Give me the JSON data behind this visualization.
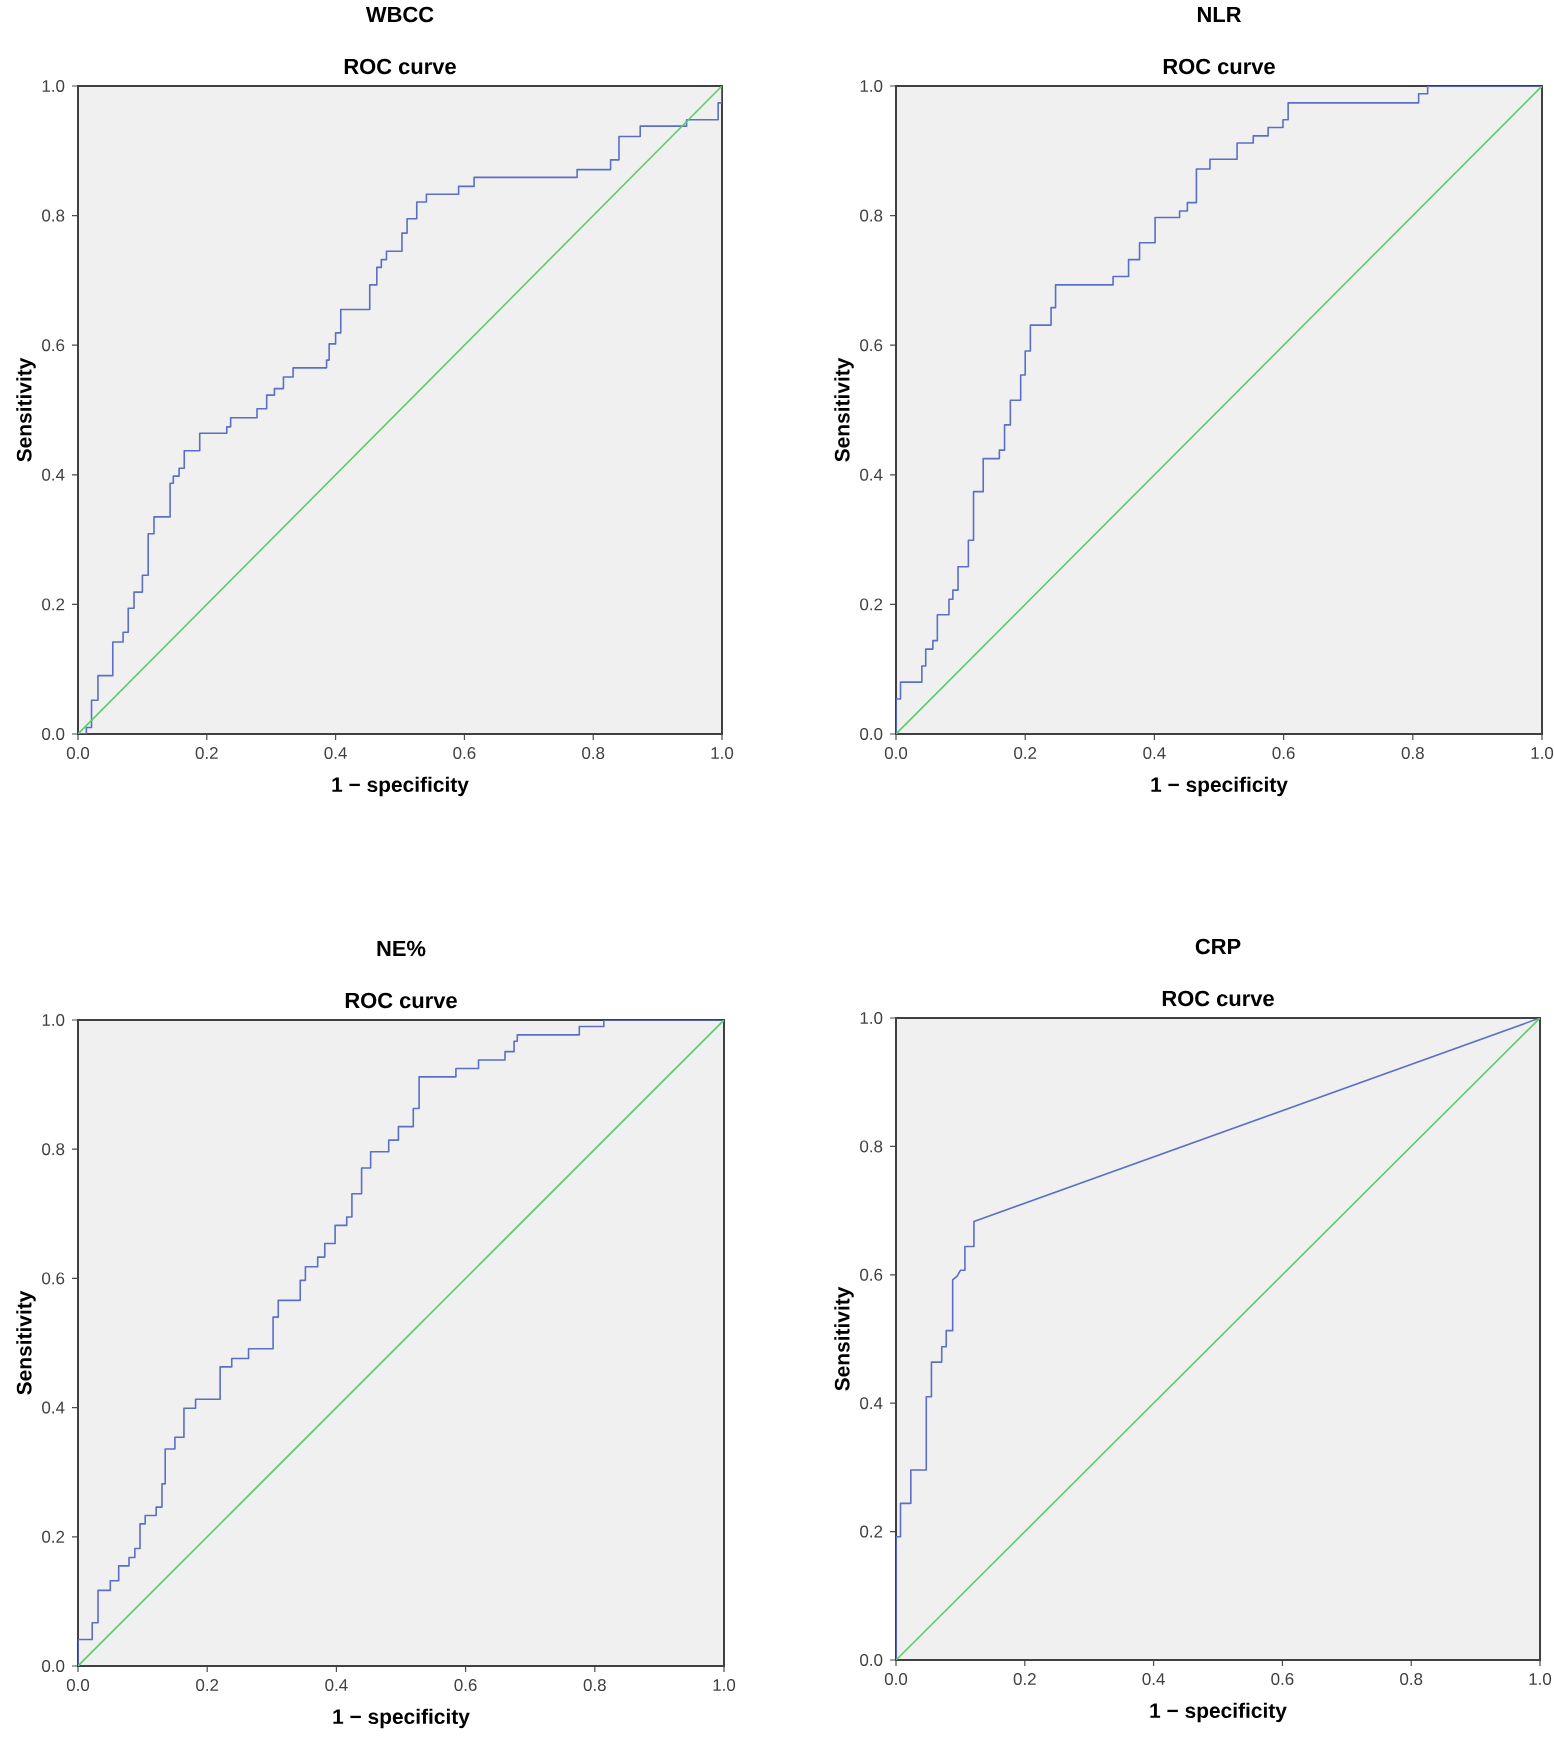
{
  "chart_data": [
    {
      "type": "step",
      "title": "WBCC",
      "subtitle": "ROC curve",
      "xlabel": "1 − specificity",
      "ylabel": "Sensitivity",
      "xlim": [
        0,
        1
      ],
      "ylim": [
        0,
        1
      ],
      "xticks": [
        {
          "value": 0,
          "label": "0.0"
        },
        {
          "value": 0.2,
          "label": "0.2"
        },
        {
          "value": 0.4,
          "label": "0.4"
        },
        {
          "value": 0.6,
          "label": "0.6"
        },
        {
          "value": 0.8,
          "label": "0.8"
        },
        {
          "value": 1,
          "label": "1.0"
        }
      ],
      "yticks": [
        {
          "value": 0,
          "label": "0.0"
        },
        {
          "value": 0.2,
          "label": "0.2"
        },
        {
          "value": 0.4,
          "label": "0.4"
        },
        {
          "value": 0.6,
          "label": "0.6"
        },
        {
          "value": 0.8,
          "label": "0.8"
        },
        {
          "value": 1,
          "label": "1.0"
        }
      ],
      "series": [
        {
          "color": "#5b6fc6",
          "x": [
            0,
            0.013,
            0.021,
            0.031,
            0.054,
            0.07,
            0.078,
            0.087,
            0.1,
            0.109,
            0.118,
            0.143,
            0.148,
            0.157,
            0.165,
            0.189,
            0.231,
            0.237,
            0.278,
            0.293,
            0.305,
            0.319,
            0.334,
            0.386,
            0.39,
            0.4,
            0.408,
            0.453,
            0.464,
            0.471,
            0.479,
            0.503,
            0.511,
            0.526,
            0.541,
            0.591,
            0.615,
            0.775,
            0.827,
            0.84,
            0.873,
            0.945,
            0.994,
            1.0
          ],
          "values": [
            0,
            0.01,
            0.052,
            0.09,
            0.142,
            0.157,
            0.194,
            0.219,
            0.245,
            0.309,
            0.335,
            0.387,
            0.398,
            0.41,
            0.437,
            0.464,
            0.474,
            0.488,
            0.502,
            0.523,
            0.533,
            0.551,
            0.565,
            0.577,
            0.602,
            0.619,
            0.655,
            0.693,
            0.72,
            0.732,
            0.745,
            0.773,
            0.795,
            0.821,
            0.833,
            0.845,
            0.859,
            0.871,
            0.886,
            0.922,
            0.938,
            0.948,
            0.974,
            1.0
          ]
        },
        {
          "type": "line",
          "color": "#5ecb6b",
          "x": [
            0,
            1
          ],
          "values": [
            0,
            1
          ]
        }
      ]
    },
    {
      "type": "step",
      "title": "NLR",
      "subtitle": "ROC curve",
      "xlabel": "1 − specificity",
      "ylabel": "Sensitivity",
      "xlim": [
        0,
        1
      ],
      "ylim": [
        0,
        1
      ],
      "xticks": [
        {
          "value": 0,
          "label": "0.0"
        },
        {
          "value": 0.2,
          "label": "0.2"
        },
        {
          "value": 0.4,
          "label": "0.4"
        },
        {
          "value": 0.6,
          "label": "0.6"
        },
        {
          "value": 0.8,
          "label": "0.8"
        },
        {
          "value": 1,
          "label": "1.0"
        }
      ],
      "yticks": [
        {
          "value": 0,
          "label": "0.0"
        },
        {
          "value": 0.2,
          "label": "0.2"
        },
        {
          "value": 0.4,
          "label": "0.4"
        },
        {
          "value": 0.6,
          "label": "0.6"
        },
        {
          "value": 0.8,
          "label": "0.8"
        },
        {
          "value": 1,
          "label": "1.0"
        }
      ],
      "series": [
        {
          "color": "#5b6fc6",
          "x": [
            0,
            0,
            0.007,
            0.04,
            0.046,
            0.057,
            0.064,
            0.082,
            0.088,
            0.096,
            0.112,
            0.12,
            0.135,
            0.16,
            0.168,
            0.177,
            0.193,
            0.2,
            0.208,
            0.24,
            0.247,
            0.336,
            0.36,
            0.377,
            0.401,
            0.439,
            0.451,
            0.465,
            0.486,
            0.528,
            0.553,
            0.576,
            0.599,
            0.607,
            0.809,
            0.823,
            1.0
          ],
          "values": [
            0,
            0.054,
            0.08,
            0.105,
            0.131,
            0.144,
            0.184,
            0.208,
            0.222,
            0.258,
            0.299,
            0.374,
            0.425,
            0.438,
            0.477,
            0.515,
            0.554,
            0.591,
            0.631,
            0.658,
            0.693,
            0.706,
            0.732,
            0.758,
            0.797,
            0.807,
            0.82,
            0.872,
            0.887,
            0.912,
            0.923,
            0.936,
            0.948,
            0.974,
            0.988,
            1.0,
            1.0
          ]
        },
        {
          "type": "line",
          "color": "#5ecb6b",
          "x": [
            0,
            1
          ],
          "values": [
            0,
            1
          ]
        }
      ]
    },
    {
      "type": "step",
      "title": "NE%",
      "subtitle": "ROC curve",
      "xlabel": "1 − specificity",
      "ylabel": "Sensitivity",
      "xlim": [
        0,
        1
      ],
      "ylim": [
        0,
        1
      ],
      "xticks": [
        {
          "value": 0,
          "label": "0.0"
        },
        {
          "value": 0.2,
          "label": "0.2"
        },
        {
          "value": 0.4,
          "label": "0.4"
        },
        {
          "value": 0.6,
          "label": "0.6"
        },
        {
          "value": 0.8,
          "label": "0.8"
        },
        {
          "value": 1,
          "label": "1.0"
        }
      ],
      "yticks": [
        {
          "value": 0,
          "label": "0.0"
        },
        {
          "value": 0.2,
          "label": "0.2"
        },
        {
          "value": 0.4,
          "label": "0.4"
        },
        {
          "value": 0.6,
          "label": "0.6"
        },
        {
          "value": 0.8,
          "label": "0.8"
        },
        {
          "value": 1,
          "label": "1.0"
        }
      ],
      "series": [
        {
          "color": "#5b6fc6",
          "x": [
            0,
            0,
            0.022,
            0.031,
            0.05,
            0.063,
            0.079,
            0.088,
            0.096,
            0.104,
            0.121,
            0.13,
            0.135,
            0.15,
            0.164,
            0.182,
            0.22,
            0.238,
            0.264,
            0.302,
            0.31,
            0.344,
            0.352,
            0.371,
            0.382,
            0.398,
            0.416,
            0.424,
            0.439,
            0.453,
            0.481,
            0.496,
            0.519,
            0.528,
            0.585,
            0.62,
            0.661,
            0.675,
            0.68,
            0.776,
            0.814,
            1.0
          ],
          "values": [
            0,
            0.041,
            0.067,
            0.117,
            0.132,
            0.155,
            0.168,
            0.182,
            0.22,
            0.233,
            0.246,
            0.282,
            0.336,
            0.354,
            0.399,
            0.413,
            0.463,
            0.476,
            0.491,
            0.54,
            0.566,
            0.597,
            0.618,
            0.633,
            0.654,
            0.682,
            0.695,
            0.731,
            0.771,
            0.796,
            0.814,
            0.835,
            0.863,
            0.912,
            0.925,
            0.938,
            0.951,
            0.967,
            0.977,
            0.99,
            1.0,
            1.0
          ]
        },
        {
          "type": "line",
          "color": "#5ecb6b",
          "x": [
            0,
            1
          ],
          "values": [
            0,
            1
          ]
        }
      ]
    },
    {
      "type": "line",
      "title": "CRP",
      "subtitle": "ROC curve",
      "xlabel": "1 − specificity",
      "ylabel": "Sensitivity",
      "xlim": [
        0,
        1
      ],
      "ylim": [
        0,
        1
      ],
      "xticks": [
        {
          "value": 0,
          "label": "0.0"
        },
        {
          "value": 0.2,
          "label": "0.2"
        },
        {
          "value": 0.4,
          "label": "0.4"
        },
        {
          "value": 0.6,
          "label": "0.6"
        },
        {
          "value": 0.8,
          "label": "0.8"
        },
        {
          "value": 1,
          "label": "1.0"
        }
      ],
      "yticks": [
        {
          "value": 0,
          "label": "0.0"
        },
        {
          "value": 0.2,
          "label": "0.2"
        },
        {
          "value": 0.4,
          "label": "0.4"
        },
        {
          "value": 0.6,
          "label": "0.6"
        },
        {
          "value": 0.8,
          "label": "0.8"
        },
        {
          "value": 1,
          "label": "1.0"
        }
      ],
      "series": [
        {
          "color": "#5b6fc6",
          "x": [
            0,
            0,
            0.007,
            0.007,
            0.023,
            0.023,
            0.047,
            0.047,
            0.055,
            0.055,
            0.071,
            0.071,
            0.078,
            0.078,
            0.088,
            0.088,
            0.095,
            0.1,
            0.107,
            0.107,
            0.121,
            0.121,
            1.0
          ],
          "values": [
            0,
            0.192,
            0.192,
            0.244,
            0.244,
            0.296,
            0.296,
            0.41,
            0.41,
            0.464,
            0.464,
            0.488,
            0.488,
            0.513,
            0.513,
            0.592,
            0.598,
            0.607,
            0.607,
            0.644,
            0.644,
            0.683,
            1.0
          ]
        },
        {
          "type": "line",
          "color": "#5ecb6b",
          "x": [
            0,
            1
          ],
          "values": [
            0,
            1
          ]
        }
      ]
    }
  ]
}
